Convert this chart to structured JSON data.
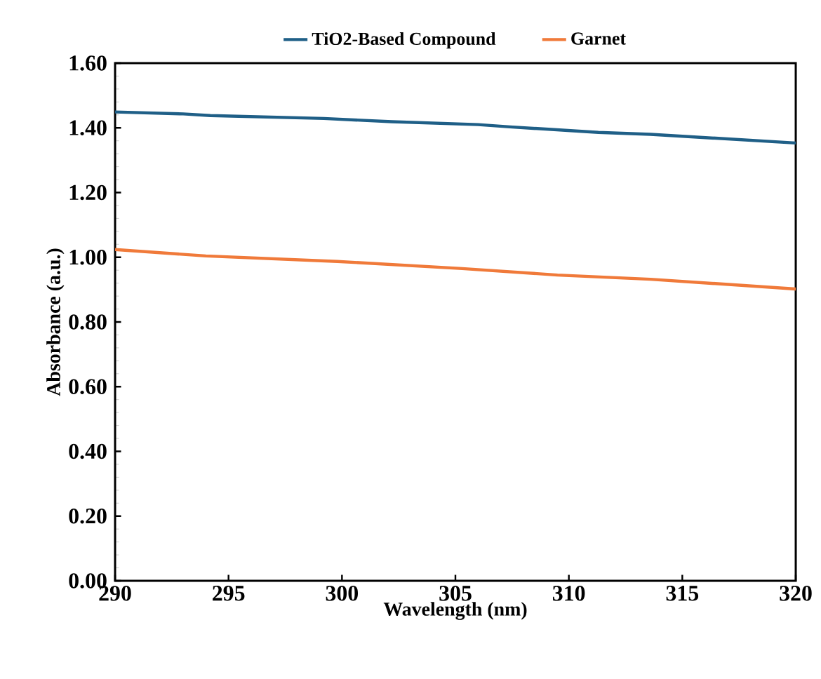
{
  "chart_data": {
    "type": "line",
    "xlabel": "Wavelength (nm)",
    "ylabel": "Absorbance (a.u.)",
    "xlim": [
      290,
      320
    ],
    "ylim": [
      0,
      1.6
    ],
    "xticks": [
      290,
      295,
      300,
      305,
      310,
      315,
      320
    ],
    "yticks": [
      {
        "value": 0,
        "label": "0.00"
      },
      {
        "value": 0.2,
        "label": "0.20"
      },
      {
        "value": 0.4,
        "label": "0.40"
      },
      {
        "value": 0.6,
        "label": "0.60"
      },
      {
        "value": 0.8,
        "label": "0.80"
      },
      {
        "value": 1.0,
        "label": "1.00"
      },
      {
        "value": 1.2,
        "label": "1.20"
      },
      {
        "value": 1.4,
        "label": "1.40"
      },
      {
        "value": 1.6,
        "label": "1.60"
      }
    ],
    "legend": "top",
    "grid": false,
    "marker": "none",
    "line_style": "solid",
    "series": [
      {
        "name": "TiO2-Based Compound",
        "color": "#1f5f87",
        "x": [
          290,
          293,
          294.2,
          299.2,
          302.2,
          306,
          307.4,
          311.3,
          313.6,
          320
        ],
        "values": [
          1.449,
          1.443,
          1.438,
          1.429,
          1.419,
          1.41,
          1.403,
          1.386,
          1.38,
          1.353
        ]
      },
      {
        "name": "Garnet",
        "color": "#f07a3a",
        "x": [
          290,
          294,
          299.8,
          305.3,
          309.5,
          313.6,
          320
        ],
        "values": [
          1.024,
          1.004,
          0.987,
          0.965,
          0.945,
          0.932,
          0.902
        ]
      }
    ]
  }
}
